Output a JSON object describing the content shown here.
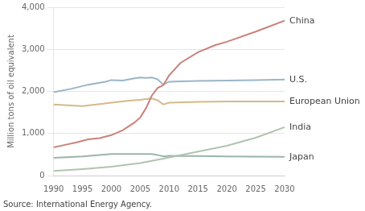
{
  "chart_data": {
    "type": "line",
    "ylabel": "Million tons of oil equivalent",
    "annotations": [
      "Source: International Energy Agency."
    ],
    "xlim": [
      1990,
      2030
    ],
    "xticks": [
      1990,
      1995,
      2000,
      2005,
      2010,
      2015,
      2020,
      2025,
      2030
    ],
    "ylim": [
      0,
      4000
    ],
    "yticks": [
      0,
      {
        "value": 1000,
        "label": "1,000"
      },
      {
        "value": 2000,
        "label": "2,000"
      },
      {
        "value": 3000,
        "label": "3,000"
      },
      {
        "value": 4000,
        "label": "4,000"
      }
    ],
    "grid": true,
    "series": [
      {
        "name": "China",
        "color": "#c9837a",
        "x": [
          1990,
          1992,
          1994,
          1996,
          1998,
          2000,
          2002,
          2004,
          2005,
          2006,
          2007,
          2008,
          2009,
          2010,
          2012,
          2015,
          2018,
          2020,
          2025,
          2030
        ],
        "values": [
          670,
          730,
          790,
          860,
          890,
          960,
          1080,
          1260,
          1380,
          1600,
          1900,
          2080,
          2150,
          2380,
          2680,
          2930,
          3100,
          3180,
          3420,
          3680
        ]
      },
      {
        "name": "U.S.",
        "color": "#9ab5c8",
        "x": [
          1990,
          1993,
          1996,
          1999,
          2000,
          2002,
          2004,
          2005,
          2006,
          2007,
          2008,
          2009,
          2010,
          2012,
          2015,
          2020,
          2025,
          2030
        ],
        "values": [
          1980,
          2060,
          2160,
          2230,
          2270,
          2260,
          2310,
          2330,
          2320,
          2330,
          2290,
          2160,
          2230,
          2240,
          2250,
          2260,
          2270,
          2280
        ]
      },
      {
        "name": "European Union",
        "color": "#d4b98a",
        "x": [
          1990,
          1995,
          1998,
          2000,
          2003,
          2005,
          2006,
          2007,
          2008,
          2009,
          2010,
          2015,
          2020,
          2025,
          2030
        ],
        "values": [
          1690,
          1650,
          1700,
          1730,
          1780,
          1800,
          1820,
          1830,
          1790,
          1690,
          1730,
          1750,
          1760,
          1760,
          1760
        ]
      },
      {
        "name": "India",
        "color": "#b0c4b0",
        "x": [
          1990,
          1995,
          2000,
          2005,
          2009,
          2010,
          2015,
          2020,
          2025,
          2030
        ],
        "values": [
          110,
          155,
          210,
          295,
          400,
          430,
          570,
          710,
          900,
          1150
        ]
      },
      {
        "name": "Japan",
        "color": "#9ab5aa",
        "x": [
          1990,
          1995,
          2000,
          2005,
          2007,
          2008,
          2009,
          2010,
          2015,
          2020,
          2025,
          2030
        ],
        "values": [
          420,
          455,
          510,
          510,
          510,
          490,
          455,
          470,
          465,
          455,
          450,
          445
        ]
      }
    ]
  }
}
